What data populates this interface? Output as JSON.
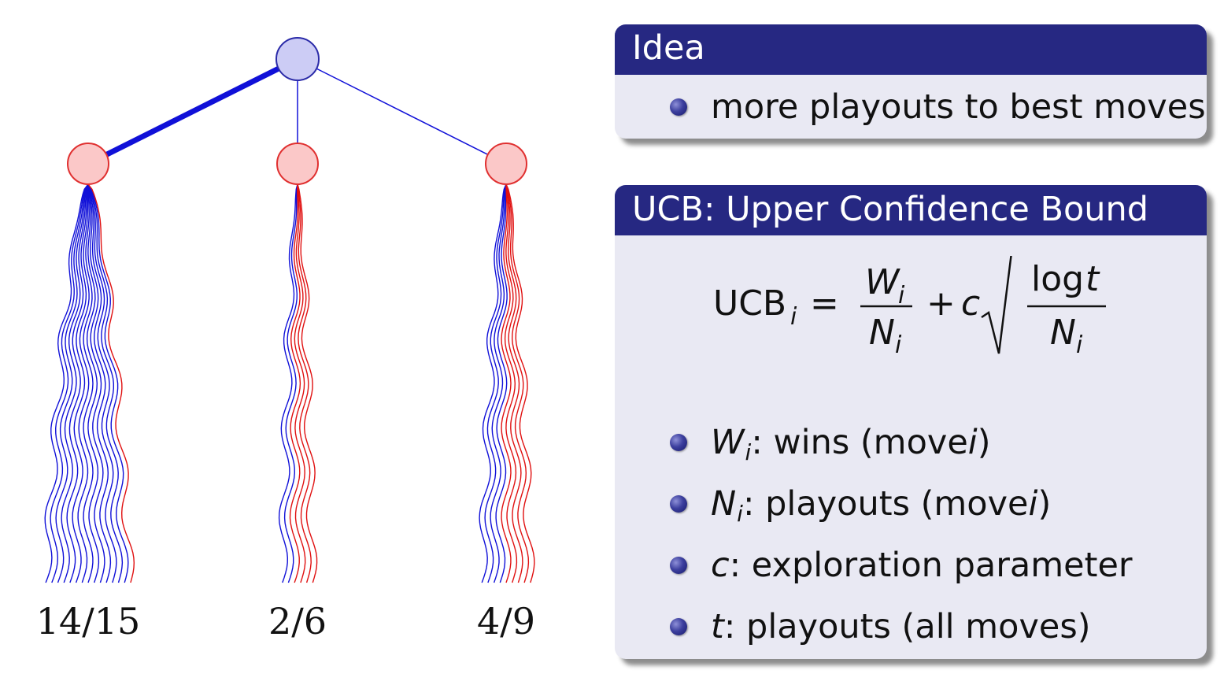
{
  "tree": {
    "children": [
      {
        "label": "14/15",
        "wins": 14,
        "playouts": 15
      },
      {
        "label": "2/6",
        "wins": 2,
        "playouts": 6
      },
      {
        "label": "4/9",
        "wins": 4,
        "playouts": 9
      }
    ],
    "colors": {
      "root_fill": "#ccccf5",
      "root_stroke": "#2a2aa8",
      "child_fill": "#fbc8c8",
      "child_stroke": "#e03030",
      "win_line": "#1010d8",
      "loss_line": "#e01010"
    }
  },
  "idea_block": {
    "title": "Idea",
    "items": [
      "more playouts to best moves"
    ]
  },
  "ucb_block": {
    "title": "UCB: Upper Confidence Bound",
    "formula": {
      "lhs": "UCB",
      "lhs_sub": "i",
      "equals": "=",
      "frac_num": "W",
      "frac_num_sub": "i",
      "frac_den": "N",
      "frac_den_sub": "i",
      "plus": "+",
      "c": "c",
      "log": "log",
      "t": "t",
      "sqrt_den": "N",
      "sqrt_den_sub": "i"
    },
    "items": [
      {
        "sym": "W",
        "sub": "i",
        "text": ": wins (move ",
        "tail_sym": "i",
        "tail": ")"
      },
      {
        "sym": "N",
        "sub": "i",
        "text": ": playouts (move ",
        "tail_sym": "i",
        "tail": ")"
      },
      {
        "sym": "c",
        "sub": "",
        "text": ": exploration parameter",
        "tail_sym": "",
        "tail": ""
      },
      {
        "sym": "t",
        "sub": "",
        "text": ": playouts (all moves)",
        "tail_sym": "",
        "tail": ""
      }
    ]
  }
}
